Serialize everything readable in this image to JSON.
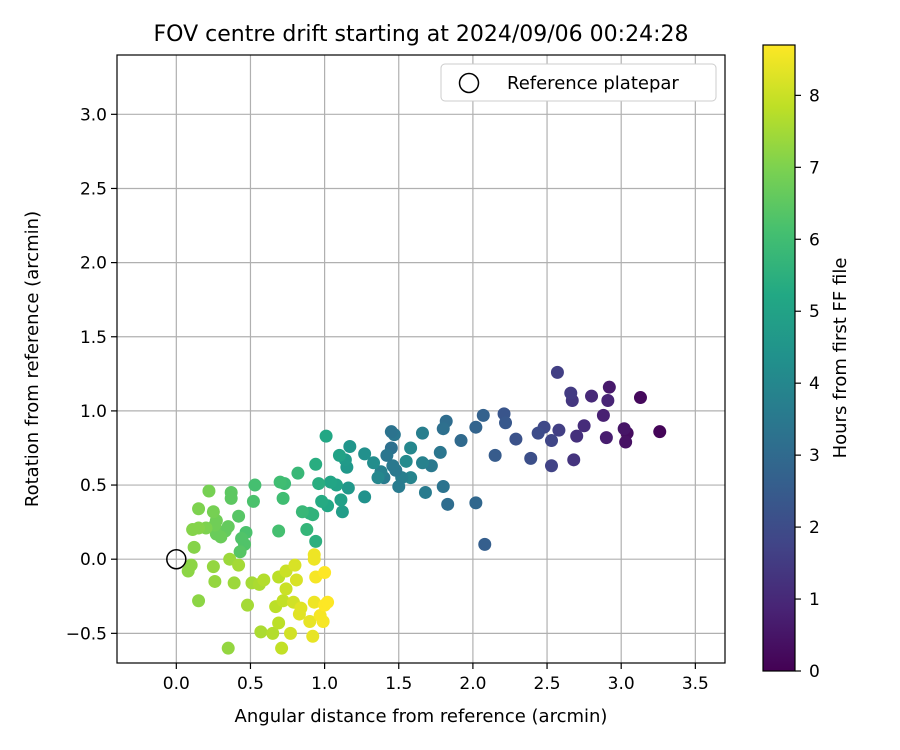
{
  "chart_data": {
    "type": "scatter",
    "title": "FOV centre drift starting at 2024/09/06 00:24:28",
    "xlabel": "Angular distance from reference (arcmin)",
    "ylabel": "Rotation from reference (arcmin)",
    "xlim": [
      -0.4,
      3.7
    ],
    "ylim": [
      -0.7,
      3.4
    ],
    "xticks": [
      0.0,
      0.5,
      1.0,
      1.5,
      2.0,
      2.5,
      3.0,
      3.5
    ],
    "xtick_labels": [
      "0.0",
      "0.5",
      "1.0",
      "1.5",
      "2.0",
      "2.5",
      "3.0",
      "3.5"
    ],
    "yticks": [
      -0.5,
      0.0,
      0.5,
      1.0,
      1.5,
      2.0,
      2.5,
      3.0
    ],
    "ytick_labels": [
      "−0.5",
      "0.0",
      "0.5",
      "1.0",
      "1.5",
      "2.0",
      "2.5",
      "3.0"
    ],
    "grid": true,
    "legend": {
      "placement": "top-right",
      "entries": [
        "Reference platepar"
      ]
    },
    "reference_point": {
      "x": 0.0,
      "y": 0.0
    },
    "colorbar": {
      "label": "Hours from first FF file",
      "colormap": "viridis",
      "range": [
        0,
        8.7
      ],
      "ticks": [
        0,
        1,
        2,
        3,
        4,
        5,
        6,
        7,
        8
      ],
      "tick_labels": [
        "0",
        "1",
        "2",
        "3",
        "4",
        "5",
        "6",
        "7",
        "8"
      ]
    },
    "points": [
      {
        "x": 3.26,
        "y": 0.86,
        "h": 0.1
      },
      {
        "x": 3.13,
        "y": 1.09,
        "h": 0.2
      },
      {
        "x": 3.04,
        "y": 0.85,
        "h": 0.3
      },
      {
        "x": 3.03,
        "y": 0.79,
        "h": 0.4
      },
      {
        "x": 3.02,
        "y": 0.88,
        "h": 0.5
      },
      {
        "x": 2.92,
        "y": 1.16,
        "h": 0.6
      },
      {
        "x": 2.9,
        "y": 0.82,
        "h": 0.7
      },
      {
        "x": 2.88,
        "y": 0.97,
        "h": 0.8
      },
      {
        "x": 2.91,
        "y": 1.07,
        "h": 0.9
      },
      {
        "x": 2.8,
        "y": 1.1,
        "h": 1.0
      },
      {
        "x": 2.75,
        "y": 0.9,
        "h": 1.1
      },
      {
        "x": 2.7,
        "y": 0.83,
        "h": 1.2
      },
      {
        "x": 2.68,
        "y": 0.67,
        "h": 1.3
      },
      {
        "x": 2.67,
        "y": 1.07,
        "h": 1.4
      },
      {
        "x": 2.66,
        "y": 1.12,
        "h": 1.5
      },
      {
        "x": 2.58,
        "y": 0.87,
        "h": 1.6
      },
      {
        "x": 2.57,
        "y": 1.26,
        "h": 1.6
      },
      {
        "x": 2.53,
        "y": 0.63,
        "h": 1.7
      },
      {
        "x": 2.53,
        "y": 0.8,
        "h": 1.8
      },
      {
        "x": 2.48,
        "y": 0.89,
        "h": 1.9
      },
      {
        "x": 2.44,
        "y": 0.85,
        "h": 2.0
      },
      {
        "x": 2.39,
        "y": 0.68,
        "h": 2.1
      },
      {
        "x": 2.29,
        "y": 0.81,
        "h": 2.2
      },
      {
        "x": 2.21,
        "y": 0.98,
        "h": 2.3
      },
      {
        "x": 2.22,
        "y": 0.92,
        "h": 2.4
      },
      {
        "x": 2.15,
        "y": 0.7,
        "h": 2.5
      },
      {
        "x": 2.08,
        "y": 0.1,
        "h": 2.6
      },
      {
        "x": 2.07,
        "y": 0.97,
        "h": 2.7
      },
      {
        "x": 2.02,
        "y": 0.89,
        "h": 2.8
      },
      {
        "x": 2.02,
        "y": 0.38,
        "h": 2.9
      },
      {
        "x": 1.92,
        "y": 0.8,
        "h": 3.0
      },
      {
        "x": 1.83,
        "y": 0.37,
        "h": 3.1
      },
      {
        "x": 1.82,
        "y": 0.93,
        "h": 3.1
      },
      {
        "x": 1.8,
        "y": 0.88,
        "h": 3.2
      },
      {
        "x": 1.8,
        "y": 0.49,
        "h": 3.3
      },
      {
        "x": 1.78,
        "y": 0.72,
        "h": 3.4
      },
      {
        "x": 1.72,
        "y": 0.63,
        "h": 3.5
      },
      {
        "x": 1.68,
        "y": 0.45,
        "h": 3.6
      },
      {
        "x": 1.66,
        "y": 0.85,
        "h": 3.7
      },
      {
        "x": 1.66,
        "y": 0.65,
        "h": 3.8
      },
      {
        "x": 1.58,
        "y": 0.55,
        "h": 3.9
      },
      {
        "x": 1.58,
        "y": 0.75,
        "h": 4.0
      },
      {
        "x": 1.55,
        "y": 0.66,
        "h": 4.1
      },
      {
        "x": 1.52,
        "y": 0.55,
        "h": 3.7
      },
      {
        "x": 1.5,
        "y": 0.49,
        "h": 3.6
      },
      {
        "x": 1.48,
        "y": 0.6,
        "h": 3.5
      },
      {
        "x": 1.47,
        "y": 0.84,
        "h": 3.4
      },
      {
        "x": 1.46,
        "y": 0.63,
        "h": 3.5
      },
      {
        "x": 1.45,
        "y": 0.86,
        "h": 3.3
      },
      {
        "x": 1.45,
        "y": 0.75,
        "h": 3.2
      },
      {
        "x": 1.42,
        "y": 0.7,
        "h": 3.4
      },
      {
        "x": 1.4,
        "y": 0.55,
        "h": 3.6
      },
      {
        "x": 1.38,
        "y": 0.59,
        "h": 3.8
      },
      {
        "x": 1.36,
        "y": 0.55,
        "h": 4.0
      },
      {
        "x": 1.33,
        "y": 0.65,
        "h": 4.2
      },
      {
        "x": 1.27,
        "y": 0.71,
        "h": 4.3
      },
      {
        "x": 1.27,
        "y": 0.42,
        "h": 4.4
      },
      {
        "x": 1.17,
        "y": 0.76,
        "h": 4.5
      },
      {
        "x": 1.16,
        "y": 0.48,
        "h": 4.6
      },
      {
        "x": 1.15,
        "y": 0.62,
        "h": 4.6
      },
      {
        "x": 1.14,
        "y": 0.67,
        "h": 4.7
      },
      {
        "x": 1.12,
        "y": 0.32,
        "h": 4.8
      },
      {
        "x": 1.11,
        "y": 0.4,
        "h": 4.9
      },
      {
        "x": 1.1,
        "y": 0.7,
        "h": 5.0
      },
      {
        "x": 1.08,
        "y": 0.5,
        "h": 5.0
      },
      {
        "x": 1.04,
        "y": 0.52,
        "h": 5.1
      },
      {
        "x": 1.02,
        "y": 0.36,
        "h": 5.2
      },
      {
        "x": 1.01,
        "y": 0.83,
        "h": 5.2
      },
      {
        "x": 0.98,
        "y": 0.39,
        "h": 5.3
      },
      {
        "x": 0.96,
        "y": 0.51,
        "h": 5.4
      },
      {
        "x": 0.94,
        "y": 0.64,
        "h": 5.4
      },
      {
        "x": 0.94,
        "y": 0.12,
        "h": 5.5
      },
      {
        "x": 0.92,
        "y": 0.3,
        "h": 5.6
      },
      {
        "x": 0.9,
        "y": 0.31,
        "h": 5.6
      },
      {
        "x": 0.88,
        "y": 0.2,
        "h": 5.7
      },
      {
        "x": 0.85,
        "y": 0.32,
        "h": 5.8
      },
      {
        "x": 0.82,
        "y": 0.58,
        "h": 5.8
      },
      {
        "x": 0.73,
        "y": 0.51,
        "h": 5.9
      },
      {
        "x": 0.72,
        "y": 0.41,
        "h": 6.0
      },
      {
        "x": 0.7,
        "y": 0.52,
        "h": 6.0
      },
      {
        "x": 0.69,
        "y": 0.19,
        "h": 6.1
      },
      {
        "x": 0.53,
        "y": 0.5,
        "h": 6.1
      },
      {
        "x": 0.52,
        "y": 0.39,
        "h": 6.2
      },
      {
        "x": 0.47,
        "y": 0.18,
        "h": 6.2
      },
      {
        "x": 0.46,
        "y": 0.1,
        "h": 6.3
      },
      {
        "x": 0.44,
        "y": 0.14,
        "h": 6.3
      },
      {
        "x": 0.43,
        "y": 0.05,
        "h": 6.4
      },
      {
        "x": 0.42,
        "y": 0.29,
        "h": 6.4
      },
      {
        "x": 0.37,
        "y": 0.45,
        "h": 6.5
      },
      {
        "x": 0.37,
        "y": 0.41,
        "h": 6.5
      },
      {
        "x": 0.35,
        "y": 0.22,
        "h": 6.6
      },
      {
        "x": 0.33,
        "y": 0.19,
        "h": 6.6
      },
      {
        "x": 0.3,
        "y": 0.15,
        "h": 6.7
      },
      {
        "x": 0.27,
        "y": 0.17,
        "h": 6.7
      },
      {
        "x": 0.27,
        "y": 0.26,
        "h": 6.8
      },
      {
        "x": 0.26,
        "y": 0.23,
        "h": 6.8
      },
      {
        "x": 0.25,
        "y": 0.32,
        "h": 6.9
      },
      {
        "x": 0.22,
        "y": 0.46,
        "h": 6.9
      },
      {
        "x": 0.2,
        "y": 0.21,
        "h": 7.0
      },
      {
        "x": 0.15,
        "y": 0.34,
        "h": 7.0
      },
      {
        "x": 0.15,
        "y": 0.21,
        "h": 7.1
      },
      {
        "x": 0.11,
        "y": 0.2,
        "h": 7.1
      },
      {
        "x": 0.12,
        "y": 0.08,
        "h": 7.1
      },
      {
        "x": 0.1,
        "y": -0.04,
        "h": 7.2
      },
      {
        "x": 0.08,
        "y": -0.08,
        "h": 7.2
      },
      {
        "x": 0.15,
        "y": -0.28,
        "h": 7.2
      },
      {
        "x": 0.25,
        "y": -0.05,
        "h": 7.3
      },
      {
        "x": 0.26,
        "y": -0.15,
        "h": 7.3
      },
      {
        "x": 0.35,
        "y": -0.6,
        "h": 7.3
      },
      {
        "x": 0.36,
        "y": 0.0,
        "h": 7.4
      },
      {
        "x": 0.39,
        "y": -0.16,
        "h": 7.4
      },
      {
        "x": 0.42,
        "y": -0.04,
        "h": 7.5
      },
      {
        "x": 0.48,
        "y": -0.31,
        "h": 7.5
      },
      {
        "x": 0.51,
        "y": -0.16,
        "h": 7.5
      },
      {
        "x": 0.56,
        "y": -0.17,
        "h": 7.6
      },
      {
        "x": 0.57,
        "y": -0.49,
        "h": 7.6
      },
      {
        "x": 0.59,
        "y": -0.14,
        "h": 7.7
      },
      {
        "x": 0.65,
        "y": -0.5,
        "h": 7.7
      },
      {
        "x": 0.67,
        "y": -0.32,
        "h": 7.8
      },
      {
        "x": 0.69,
        "y": -0.43,
        "h": 7.8
      },
      {
        "x": 0.69,
        "y": -0.12,
        "h": 7.8
      },
      {
        "x": 0.71,
        "y": -0.6,
        "h": 7.9
      },
      {
        "x": 0.72,
        "y": -0.28,
        "h": 7.9
      },
      {
        "x": 0.74,
        "y": -0.08,
        "h": 8.0
      },
      {
        "x": 0.74,
        "y": -0.2,
        "h": 8.0
      },
      {
        "x": 0.77,
        "y": -0.5,
        "h": 8.1
      },
      {
        "x": 0.79,
        "y": -0.29,
        "h": 8.1
      },
      {
        "x": 0.8,
        "y": -0.04,
        "h": 8.2
      },
      {
        "x": 0.81,
        "y": -0.14,
        "h": 8.2
      },
      {
        "x": 0.83,
        "y": -0.37,
        "h": 8.3
      },
      {
        "x": 0.84,
        "y": -0.33,
        "h": 8.3
      },
      {
        "x": 0.9,
        "y": -0.42,
        "h": 8.4
      },
      {
        "x": 0.92,
        "y": -0.52,
        "h": 8.4
      },
      {
        "x": 0.93,
        "y": 0.03,
        "h": 8.5
      },
      {
        "x": 0.93,
        "y": 0.0,
        "h": 8.5
      },
      {
        "x": 0.93,
        "y": -0.29,
        "h": 8.5
      },
      {
        "x": 0.94,
        "y": -0.12,
        "h": 8.6
      },
      {
        "x": 0.97,
        "y": -0.38,
        "h": 8.6
      },
      {
        "x": 0.99,
        "y": -0.42,
        "h": 8.6
      },
      {
        "x": 1.0,
        "y": -0.31,
        "h": 8.7
      },
      {
        "x": 1.0,
        "y": -0.09,
        "h": 8.7
      },
      {
        "x": 1.02,
        "y": -0.29,
        "h": 8.7
      }
    ]
  }
}
